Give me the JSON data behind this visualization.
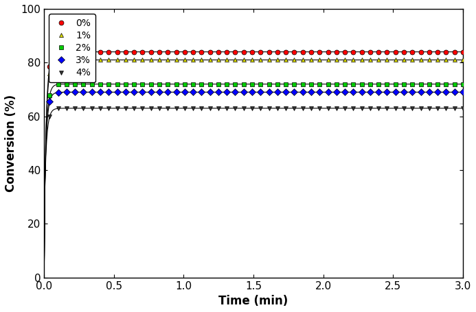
{
  "title": "",
  "xlabel": "Time (min)",
  "ylabel": "Conversion (%)",
  "xlim": [
    0,
    3.0
  ],
  "ylim": [
    0,
    100
  ],
  "xticks": [
    0.0,
    0.5,
    1.0,
    1.5,
    2.0,
    2.5,
    3.0
  ],
  "yticks": [
    0,
    20,
    40,
    60,
    80,
    100
  ],
  "series": [
    {
      "label": "0%",
      "line_color": "#000000",
      "marker": "o",
      "marker_facecolor": "#ff0000",
      "marker_edgecolor": "#000000",
      "a": 84,
      "b": 0.7,
      "k": 60.0
    },
    {
      "label": "1%",
      "line_color": "#000000",
      "marker": "^",
      "marker_facecolor": "#dddd00",
      "marker_edgecolor": "#000000",
      "a": 81,
      "b": 0.68,
      "k": 60.0
    },
    {
      "label": "2%",
      "line_color": "#000000",
      "marker": "s",
      "marker_facecolor": "#00cc00",
      "marker_edgecolor": "#000000",
      "a": 72,
      "b": 0.62,
      "k": 60.0
    },
    {
      "label": "3%",
      "line_color": "#000000",
      "marker": "D",
      "marker_facecolor": "#0000ff",
      "marker_edgecolor": "#000000",
      "a": 69,
      "b": 0.56,
      "k": 60.0
    },
    {
      "label": "4%",
      "line_color": "#000000",
      "marker": "v",
      "marker_facecolor": "#333333",
      "marker_edgecolor": "#000000",
      "a": 63,
      "b": 0.52,
      "k": 60.0
    }
  ],
  "legend_loc": "upper left",
  "figsize": [
    6.93,
    4.55
  ],
  "dpi": 100,
  "n_line_points": 500,
  "n_marker_points": 50,
  "marker_start": 0.04,
  "markersize": 5,
  "linewidth": 0.8
}
